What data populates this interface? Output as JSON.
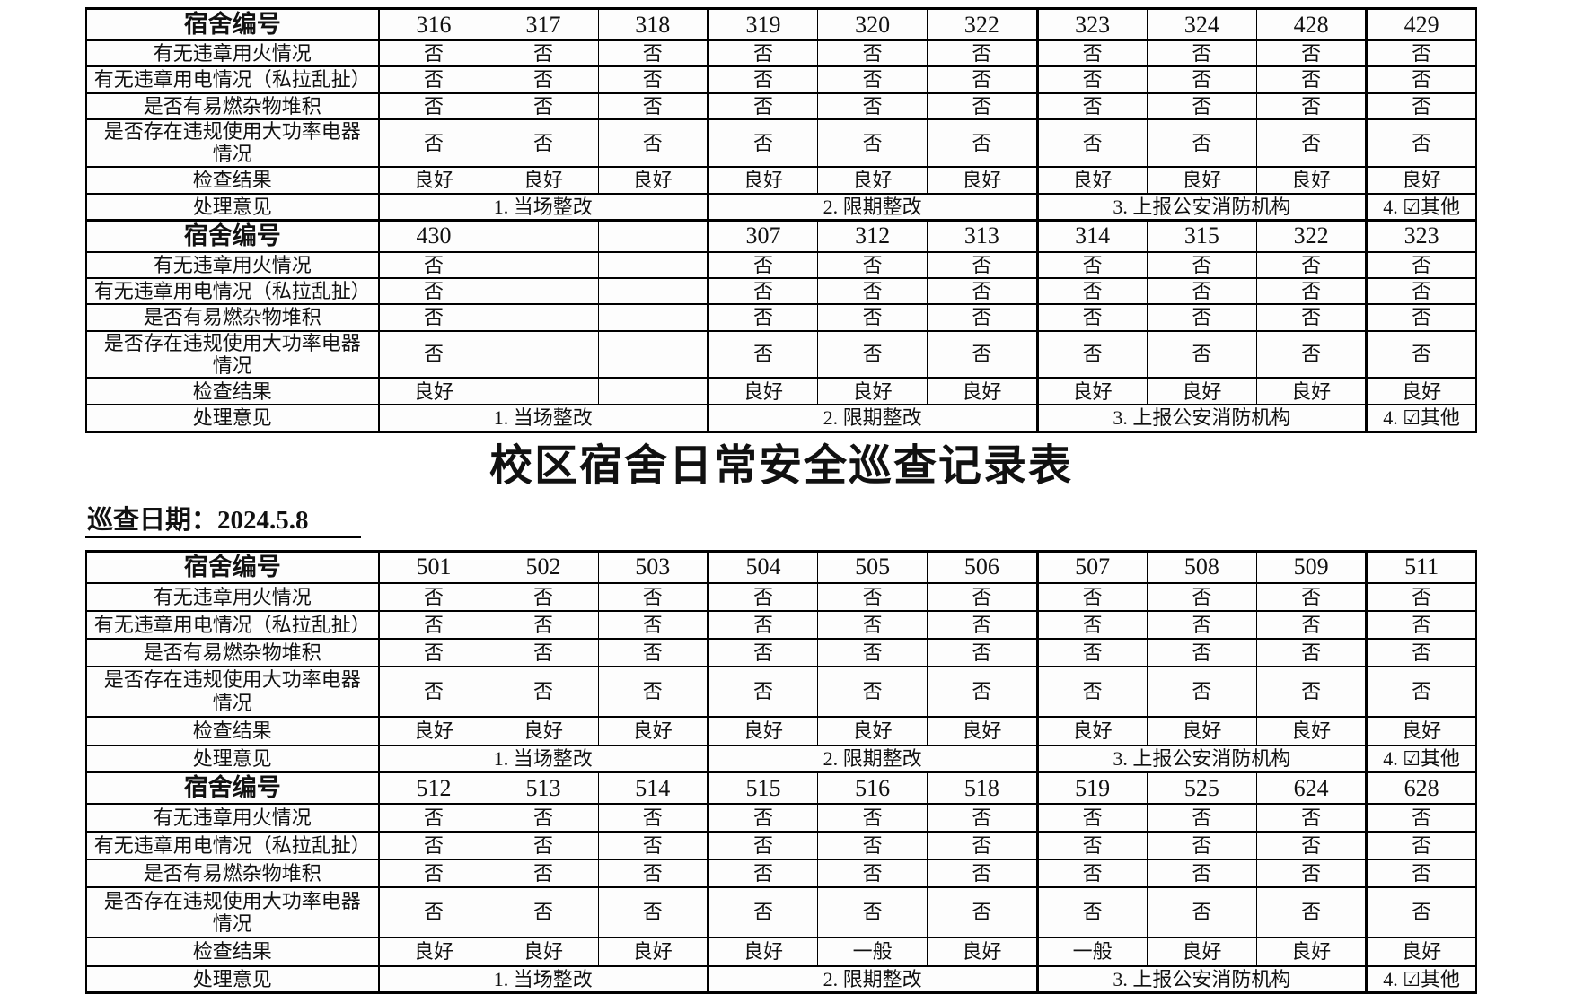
{
  "page": {
    "title": "校区宿舍日常安全巡查记录表",
    "inspection_date": "巡查日期：2024.5.8"
  },
  "labels": {
    "dorm_number": "宿舍编号",
    "questions": [
      "有无违章用火情况",
      "有无违章用电情况（私拉乱扯）",
      "是否有易燃杂物堆积",
      "是否存在违规使用大功率电器情况"
    ],
    "result": "检查结果",
    "opinion": "处理意见"
  },
  "opinion_options": [
    "1. 当场整改",
    "2. 限期整改",
    "3. 上报公安消防机构",
    "4. ☑其他"
  ],
  "opinion_spans": [
    3,
    3,
    3,
    1
  ],
  "tables": [
    {
      "blocks": [
        {
          "dorm_numbers": [
            "316",
            "317",
            "318",
            "319",
            "320",
            "322",
            "323",
            "324",
            "428",
            "429"
          ],
          "answers": [
            [
              "否",
              "否",
              "否",
              "否",
              "否",
              "否",
              "否",
              "否",
              "否",
              "否"
            ],
            [
              "否",
              "否",
              "否",
              "否",
              "否",
              "否",
              "否",
              "否",
              "否",
              "否"
            ],
            [
              "否",
              "否",
              "否",
              "否",
              "否",
              "否",
              "否",
              "否",
              "否",
              "否"
            ],
            [
              "否",
              "否",
              "否",
              "否",
              "否",
              "否",
              "否",
              "否",
              "否",
              "否"
            ]
          ],
          "results": [
            "良好",
            "良好",
            "良好",
            "良好",
            "良好",
            "良好",
            "良好",
            "良好",
            "良好",
            "良好"
          ]
        },
        {
          "dorm_numbers": [
            "430",
            "",
            "",
            "307",
            "312",
            "313",
            "314",
            "315",
            "322",
            "323"
          ],
          "answers": [
            [
              "否",
              "",
              "",
              "否",
              "否",
              "否",
              "否",
              "否",
              "否",
              "否"
            ],
            [
              "否",
              "",
              "",
              "否",
              "否",
              "否",
              "否",
              "否",
              "否",
              "否"
            ],
            [
              "否",
              "",
              "",
              "否",
              "否",
              "否",
              "否",
              "否",
              "否",
              "否"
            ],
            [
              "否",
              "",
              "",
              "否",
              "否",
              "否",
              "否",
              "否",
              "否",
              "否"
            ]
          ],
          "results": [
            "良好",
            "",
            "",
            "良好",
            "良好",
            "良好",
            "良好",
            "良好",
            "良好",
            "良好"
          ]
        }
      ]
    },
    {
      "blocks": [
        {
          "dorm_numbers": [
            "501",
            "502",
            "503",
            "504",
            "505",
            "506",
            "507",
            "508",
            "509",
            "511"
          ],
          "answers": [
            [
              "否",
              "否",
              "否",
              "否",
              "否",
              "否",
              "否",
              "否",
              "否",
              "否"
            ],
            [
              "否",
              "否",
              "否",
              "否",
              "否",
              "否",
              "否",
              "否",
              "否",
              "否"
            ],
            [
              "否",
              "否",
              "否",
              "否",
              "否",
              "否",
              "否",
              "否",
              "否",
              "否"
            ],
            [
              "否",
              "否",
              "否",
              "否",
              "否",
              "否",
              "否",
              "否",
              "否",
              "否"
            ]
          ],
          "results": [
            "良好",
            "良好",
            "良好",
            "良好",
            "良好",
            "良好",
            "良好",
            "良好",
            "良好",
            "良好"
          ]
        },
        {
          "dorm_numbers": [
            "512",
            "513",
            "514",
            "515",
            "516",
            "518",
            "519",
            "525",
            "624",
            "628"
          ],
          "answers": [
            [
              "否",
              "否",
              "否",
              "否",
              "否",
              "否",
              "否",
              "否",
              "否",
              "否"
            ],
            [
              "否",
              "否",
              "否",
              "否",
              "否",
              "否",
              "否",
              "否",
              "否",
              "否"
            ],
            [
              "否",
              "否",
              "否",
              "否",
              "否",
              "否",
              "否",
              "否",
              "否",
              "否"
            ],
            [
              "否",
              "否",
              "否",
              "否",
              "否",
              "否",
              "否",
              "否",
              "否",
              "否"
            ]
          ],
          "results": [
            "良好",
            "良好",
            "良好",
            "良好",
            "一般",
            "良好",
            "一般",
            "良好",
            "良好",
            "良好"
          ]
        }
      ]
    }
  ]
}
